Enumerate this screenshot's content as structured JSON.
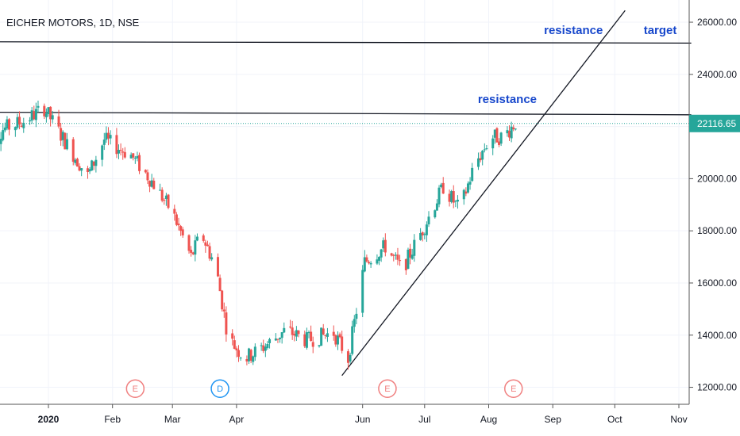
{
  "chart_data": {
    "type": "candlestick",
    "title": "EICHER MOTORS, 1D, NSE",
    "colors": {
      "up": "#26a69a",
      "down": "#ef5350",
      "last_price_line": "#26a69a",
      "annotation": "#1848cc",
      "trendline": "#131722",
      "grid": "#f0f3fa",
      "earnings": "#f08080",
      "dividend": "#2196f3"
    },
    "ylim": [
      11500,
      26700
    ],
    "y_ticks": [
      {
        "value": 12000,
        "label": "12000.00"
      },
      {
        "value": 14000,
        "label": "14000.00"
      },
      {
        "value": 16000,
        "label": "16000.00"
      },
      {
        "value": 18000,
        "label": "18000.00"
      },
      {
        "value": 20000,
        "label": "20000.00"
      },
      {
        "value": 24000,
        "label": "24000.00"
      },
      {
        "value": 26000,
        "label": "26000.00"
      }
    ],
    "x_ticks": [
      {
        "date": "2020-01-01",
        "label": "2020",
        "bold": true
      },
      {
        "date": "2020-02-01",
        "label": "Feb"
      },
      {
        "date": "2020-03-01",
        "label": "Mar"
      },
      {
        "date": "2020-04-01",
        "label": "Apr"
      },
      {
        "date": "2020-06-01",
        "label": "Jun"
      },
      {
        "date": "2020-07-01",
        "label": "Jul"
      },
      {
        "date": "2020-08-01",
        "label": "Aug"
      },
      {
        "date": "2020-09-01",
        "label": "Sep"
      },
      {
        "date": "2020-10-01",
        "label": "Oct"
      },
      {
        "date": "2020-11-01",
        "label": "Nov"
      }
    ],
    "last_price": {
      "value": 22116.65,
      "label": "22116.65"
    },
    "price_path": [
      [
        "2019-12-01",
        21200
      ],
      [
        "2019-12-10",
        21900
      ],
      [
        "2019-12-20",
        22200
      ],
      [
        "2019-12-30",
        22700
      ],
      [
        "2020-01-10",
        21300
      ],
      [
        "2020-01-20",
        20100
      ],
      [
        "2020-01-28",
        21500
      ],
      [
        "2020-02-10",
        20900
      ],
      [
        "2020-02-20",
        19900
      ],
      [
        "2020-03-01",
        18700
      ],
      [
        "2020-03-10",
        17000
      ],
      [
        "2020-03-15",
        17900
      ],
      [
        "2020-03-22",
        16600
      ],
      [
        "2020-03-28",
        13900
      ],
      [
        "2020-04-05",
        13100
      ],
      [
        "2020-04-15",
        13600
      ],
      [
        "2020-04-25",
        14200
      ],
      [
        "2020-05-05",
        13800
      ],
      [
        "2020-05-18",
        14100
      ],
      [
        "2020-05-25",
        13100
      ],
      [
        "2020-06-02",
        16800
      ],
      [
        "2020-06-12",
        17400
      ],
      [
        "2020-06-20",
        16500
      ],
      [
        "2020-07-01",
        18200
      ],
      [
        "2020-07-10",
        19700
      ],
      [
        "2020-07-18",
        18800
      ],
      [
        "2020-07-25",
        20500
      ],
      [
        "2020-08-02",
        21600
      ],
      [
        "2020-08-08",
        21600
      ],
      [
        "2020-08-14",
        22150
      ]
    ],
    "horizontal_lines": [
      {
        "from": [
          "2019-11-25",
          22550
        ],
        "to": [
          "2020-11-07",
          22450
        ]
      },
      {
        "from": [
          "2019-11-25",
          25250
        ],
        "to": [
          "2020-11-07",
          25200
        ]
      }
    ],
    "trendline": {
      "from": [
        "2020-05-22",
        12450
      ],
      "to": [
        "2020-10-06",
        26450
      ]
    },
    "annotations": [
      {
        "text": "resistance",
        "date": "2020-08-10",
        "value": 22900
      },
      {
        "text": "resistance",
        "date": "2020-09-11",
        "value": 25550
      },
      {
        "text": "target",
        "date": "2020-10-23",
        "value": 25550
      }
    ],
    "events": [
      {
        "letter": "E",
        "date": "2020-02-12",
        "value": 11950,
        "type": "earnings"
      },
      {
        "letter": "D",
        "date": "2020-03-24",
        "value": 11950,
        "type": "dividend"
      },
      {
        "letter": "E",
        "date": "2020-06-13",
        "value": 11950,
        "type": "earnings"
      },
      {
        "letter": "E",
        "date": "2020-08-13",
        "value": 11950,
        "type": "earnings"
      }
    ]
  }
}
